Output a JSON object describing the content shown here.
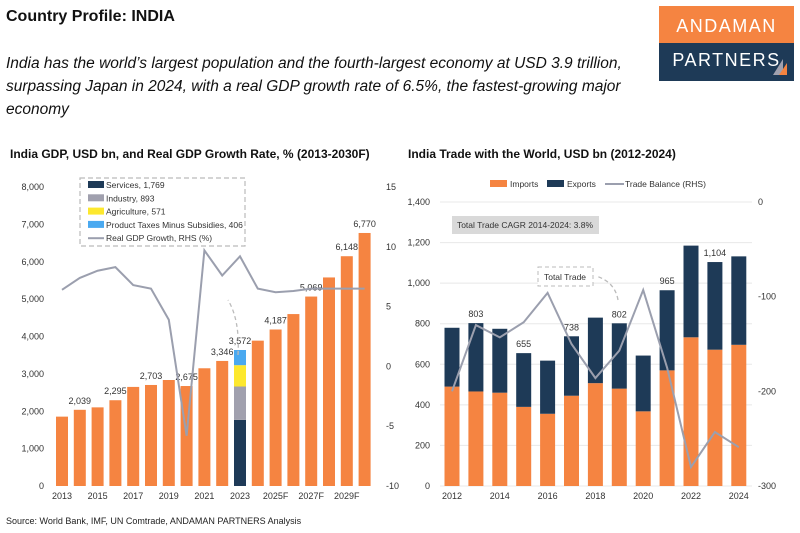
{
  "title": "Country Profile: INDIA",
  "subtitle": "India has the world’s largest population and the fourth-largest economy at USD 3.9 trillion, surpassing Japan in 2024, with a real GDP growth rate of 6.5%, the fastest-growing major economy",
  "logo": {
    "top": "ANDAMAN",
    "bottom": "PARTNERS"
  },
  "source": "Source: World Bank, IMF, UN Comtrade, ANDAMAN PARTNERS Analysis",
  "colors": {
    "orange": "#f58441",
    "navy": "#1e3a57",
    "gray": "#a0a0ae",
    "yellow": "#fde82e",
    "blue": "#4aa9f0",
    "line": "#9b9fae"
  },
  "chart_data": [
    {
      "type": "bar",
      "title": "India GDP, USD bn, and Real GDP Growth Rate, % (2013-2030F)",
      "categories": [
        "2013",
        "2014",
        "2015",
        "2016",
        "2017",
        "2018",
        "2019",
        "2020",
        "2021",
        "2022",
        "2023",
        "2024",
        "2025F",
        "2026F",
        "2027F",
        "2028F",
        "2029F",
        "2030F"
      ],
      "xtick_labels": [
        "2013",
        "2015",
        "2017",
        "2019",
        "2021",
        "2023",
        "2025F",
        "2027F",
        "2029F"
      ],
      "ylim": [
        0,
        8000
      ],
      "yticks": [
        "0",
        "1,000",
        "2,000",
        "3,000",
        "4,000",
        "5,000",
        "6,000",
        "7,000",
        "8,000"
      ],
      "y2lim": [
        -10,
        15
      ],
      "y2ticks": [
        "-10",
        "-5",
        "0",
        "5",
        "10",
        "15"
      ],
      "series": [
        {
          "name": "GDP",
          "values": [
            1856,
            2039,
            2104,
            2295,
            2651,
            2703,
            2836,
            2675,
            3150,
            3346,
            3572,
            3889,
            4187,
            4600,
            5069,
            5580,
            6148,
            6770
          ]
        },
        {
          "name": "Real GDP Growth, RHS (%)",
          "type": "line",
          "axis": "right",
          "values": [
            6.4,
            7.4,
            8.0,
            8.3,
            6.8,
            6.5,
            3.9,
            -5.8,
            9.7,
            7.6,
            9.2,
            6.5,
            6.2,
            6.3,
            6.5,
            6.5,
            6.5,
            6.5
          ]
        }
      ],
      "data_labels": [
        {
          "category": "2014",
          "text": "2,039"
        },
        {
          "category": "2016",
          "text": "2,295"
        },
        {
          "category": "2018",
          "text": "2,703"
        },
        {
          "category": "2020",
          "text": "2,675"
        },
        {
          "category": "2022",
          "text": "3,346"
        },
        {
          "category": "2023",
          "text": "3,572"
        },
        {
          "category": "2025F",
          "text": "4,187"
        },
        {
          "category": "2027F",
          "text": "5,069"
        },
        {
          "category": "2029F",
          "text": "6,148"
        },
        {
          "category": "2030F",
          "text": "6,770"
        }
      ],
      "breakdown_2023": [
        {
          "name": "Services, 1,769",
          "value": 1769,
          "color": "#1e3a57"
        },
        {
          "name": "Industry, 893",
          "value": 893,
          "color": "#a0a0ae"
        },
        {
          "name": "Agriculture, 571",
          "value": 571,
          "color": "#fde82e"
        },
        {
          "name": "Product Taxes Minus Subsidies, 406",
          "value": 406,
          "color": "#4aa9f0"
        }
      ],
      "legend": [
        "Services, 1,769",
        "Industry, 893",
        "Agriculture, 571",
        "Product Taxes Minus Subsidies, 406",
        "Real GDP Growth, RHS (%)"
      ],
      "legend_position": "top-left",
      "grid": false
    },
    {
      "type": "bar",
      "stacked": true,
      "title": "India Trade with the World, USD bn (2012-2024)",
      "categories": [
        "2012",
        "2013",
        "2014",
        "2015",
        "2016",
        "2017",
        "2018",
        "2019",
        "2020",
        "2021",
        "2022",
        "2023",
        "2024"
      ],
      "xtick_labels": [
        "2012",
        "2014",
        "2016",
        "2018",
        "2020",
        "2022",
        "2024"
      ],
      "ylim": [
        0,
        1400
      ],
      "yticks": [
        "0",
        "200",
        "400",
        "600",
        "800",
        "1,000",
        "1,200",
        "1,400"
      ],
      "y2lim": [
        -300,
        0
      ],
      "y2ticks": [
        "-300",
        "-200",
        "-100",
        "0"
      ],
      "series": [
        {
          "name": "Imports",
          "values": [
            490,
            466,
            460,
            390,
            356,
            445,
            507,
            480,
            368,
            570,
            733,
            672,
            696
          ]
        },
        {
          "name": "Exports",
          "values": [
            290,
            337,
            315,
            265,
            262,
            293,
            323,
            322,
            275,
            395,
            452,
            432,
            436
          ]
        },
        {
          "name": "Trade Balance (RHS)",
          "type": "line",
          "axis": "right",
          "values": [
            -200,
            -130,
            -143,
            -127,
            -96,
            -150,
            -186,
            -157,
            -93,
            -175,
            -280,
            -243,
            -259
          ]
        }
      ],
      "data_labels": [
        {
          "category": "2013",
          "text": "803"
        },
        {
          "category": "2015",
          "text": "655"
        },
        {
          "category": "2017",
          "text": "738"
        },
        {
          "category": "2019",
          "text": "802"
        },
        {
          "category": "2021",
          "text": "965"
        },
        {
          "category": "2023",
          "text": "1,104"
        }
      ],
      "annotations": [
        "Total Trade CAGR 2014-2024: 3.8%",
        "Total Trade"
      ],
      "legend_position": "top",
      "grid": true
    }
  ]
}
